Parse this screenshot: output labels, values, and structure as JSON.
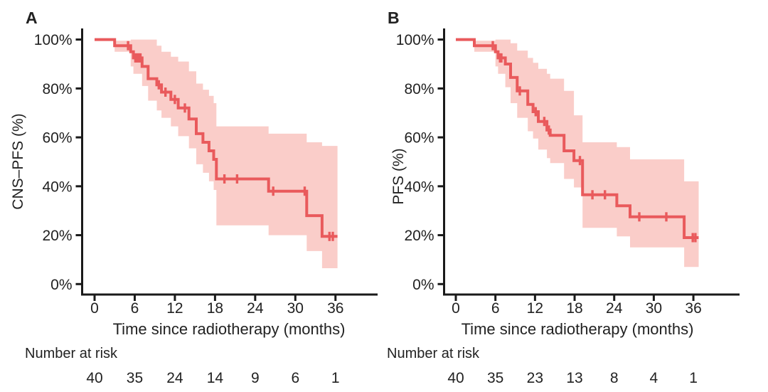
{
  "figure": {
    "background": "#ffffff",
    "colors": {
      "curve": "#e95a5c",
      "ci_band": "#facdc9",
      "axis": "#1a1a1a",
      "text": "#222222"
    }
  },
  "chart_data": [
    {
      "type": "line",
      "subtype": "kaplan-meier-step",
      "panel": "A",
      "ylabel": "CNS–PFS (%)",
      "xlabel": "Time since radiotherapy (months)",
      "xlim": [
        0,
        40
      ],
      "ylim": [
        0,
        100
      ],
      "grid": false,
      "legend": "none",
      "x_ticks": [
        0,
        6,
        12,
        18,
        24,
        30,
        36
      ],
      "y_ticks": [
        {
          "value": 100,
          "label": "100%"
        },
        {
          "value": 80,
          "label": "80%"
        },
        {
          "value": 60,
          "label": "60%"
        },
        {
          "value": 40,
          "label": "40%"
        },
        {
          "value": 20,
          "label": "20%"
        },
        {
          "value": 0,
          "label": "0%"
        }
      ],
      "series": [
        {
          "name": "CNS-PFS",
          "color": "#e95a5c",
          "steps": [
            [
              0,
              100
            ],
            [
              3.0,
              97.5
            ],
            [
              5.4,
              95
            ],
            [
              5.8,
              92.5
            ],
            [
              7.1,
              89
            ],
            [
              8.0,
              84
            ],
            [
              9.3,
              81.5
            ],
            [
              10.0,
              78.5
            ],
            [
              11.4,
              75.5
            ],
            [
              12.5,
              72
            ],
            [
              14.1,
              67.5
            ],
            [
              15.2,
              61.5
            ],
            [
              16.2,
              58
            ],
            [
              17.1,
              54.5
            ],
            [
              17.8,
              51
            ],
            [
              18.2,
              43
            ],
            [
              26.0,
              38
            ],
            [
              31.7,
              28
            ],
            [
              34.0,
              19.5
            ]
          ],
          "end_time": 36.3,
          "censor_times": [
            5.0,
            6.1,
            6.35,
            6.6,
            6.85,
            9.6,
            10.6,
            12.0,
            13.5,
            19.4,
            21.3,
            26.7,
            31.4,
            35.1,
            35.6
          ],
          "ci_band": [
            [
              3.0,
              95,
              99.5
            ],
            [
              5.4,
              89,
              100
            ],
            [
              5.8,
              86,
              100
            ],
            [
              7.1,
              81,
              100
            ],
            [
              8.0,
              75,
              100
            ],
            [
              9.3,
              71,
              97.5
            ],
            [
              10.0,
              68,
              95
            ],
            [
              11.4,
              64.5,
              93
            ],
            [
              12.5,
              60.5,
              91
            ],
            [
              14.1,
              55.5,
              87
            ],
            [
              15.2,
              49,
              82
            ],
            [
              16.2,
              45.5,
              79.5
            ],
            [
              17.1,
              42,
              77
            ],
            [
              17.8,
              38.5,
              74
            ],
            [
              18.2,
              24,
              64.5
            ],
            [
              26.0,
              20,
              61.5
            ],
            [
              31.7,
              13.5,
              58
            ],
            [
              34.0,
              6.5,
              56.5
            ]
          ]
        }
      ],
      "number_at_risk": {
        "label": "Number at risk",
        "times": [
          0,
          6,
          12,
          18,
          24,
          30,
          36
        ],
        "counts": [
          40,
          35,
          24,
          14,
          9,
          6,
          1
        ]
      }
    },
    {
      "type": "line",
      "subtype": "kaplan-meier-step",
      "panel": "B",
      "ylabel": "PFS (%)",
      "xlabel": "Time since radiotherapy (months)",
      "xlim": [
        0,
        40
      ],
      "ylim": [
        0,
        100
      ],
      "grid": false,
      "legend": "none",
      "x_ticks": [
        0,
        6,
        12,
        18,
        24,
        30,
        36
      ],
      "y_ticks": [
        {
          "value": 100,
          "label": "100%"
        },
        {
          "value": 80,
          "label": "80%"
        },
        {
          "value": 60,
          "label": "60%"
        },
        {
          "value": 40,
          "label": "40%"
        },
        {
          "value": 20,
          "label": "20%"
        },
        {
          "value": 0,
          "label": "0%"
        }
      ],
      "series": [
        {
          "name": "PFS",
          "color": "#e95a5c",
          "steps": [
            [
              0,
              100
            ],
            [
              2.8,
              97.5
            ],
            [
              6.0,
              95
            ],
            [
              6.4,
              92.5
            ],
            [
              7.5,
              90
            ],
            [
              8.3,
              84.5
            ],
            [
              9.3,
              79
            ],
            [
              10.9,
              73.5
            ],
            [
              11.7,
              70.5
            ],
            [
              12.5,
              66.5
            ],
            [
              13.8,
              63
            ],
            [
              14.3,
              60.8
            ],
            [
              16.4,
              54.5
            ],
            [
              17.9,
              50.5
            ],
            [
              19.2,
              36.5
            ],
            [
              24.4,
              32
            ],
            [
              26.4,
              27.5
            ],
            [
              34.6,
              19
            ]
          ],
          "end_time": 36.8,
          "censor_times": [
            5.6,
            6.7,
            6.9,
            9.7,
            12.1,
            13.4,
            14.1,
            18.8,
            20.7,
            22.6,
            27.8,
            31.9,
            35.9,
            36.3
          ],
          "ci_band": [
            [
              2.8,
              95,
              99.5
            ],
            [
              6.0,
              89,
              100
            ],
            [
              6.4,
              86,
              100
            ],
            [
              7.5,
              80.5,
              100
            ],
            [
              8.3,
              74,
              98.5
            ],
            [
              9.3,
              68,
              95.5
            ],
            [
              10.9,
              62.5,
              92.5
            ],
            [
              11.7,
              59.5,
              90.5
            ],
            [
              12.5,
              55,
              88
            ],
            [
              13.8,
              51.5,
              86
            ],
            [
              14.3,
              49.5,
              84
            ],
            [
              16.4,
              43,
              79
            ],
            [
              17.9,
              39.5,
              69
            ],
            [
              19.2,
              23,
              58
            ],
            [
              24.4,
              19.5,
              56
            ],
            [
              26.4,
              15,
              51
            ],
            [
              34.6,
              7,
              42
            ]
          ]
        }
      ],
      "number_at_risk": {
        "label": "Number at risk",
        "times": [
          0,
          6,
          12,
          18,
          24,
          30,
          36
        ],
        "counts": [
          40,
          35,
          23,
          13,
          8,
          4,
          1
        ]
      }
    }
  ]
}
